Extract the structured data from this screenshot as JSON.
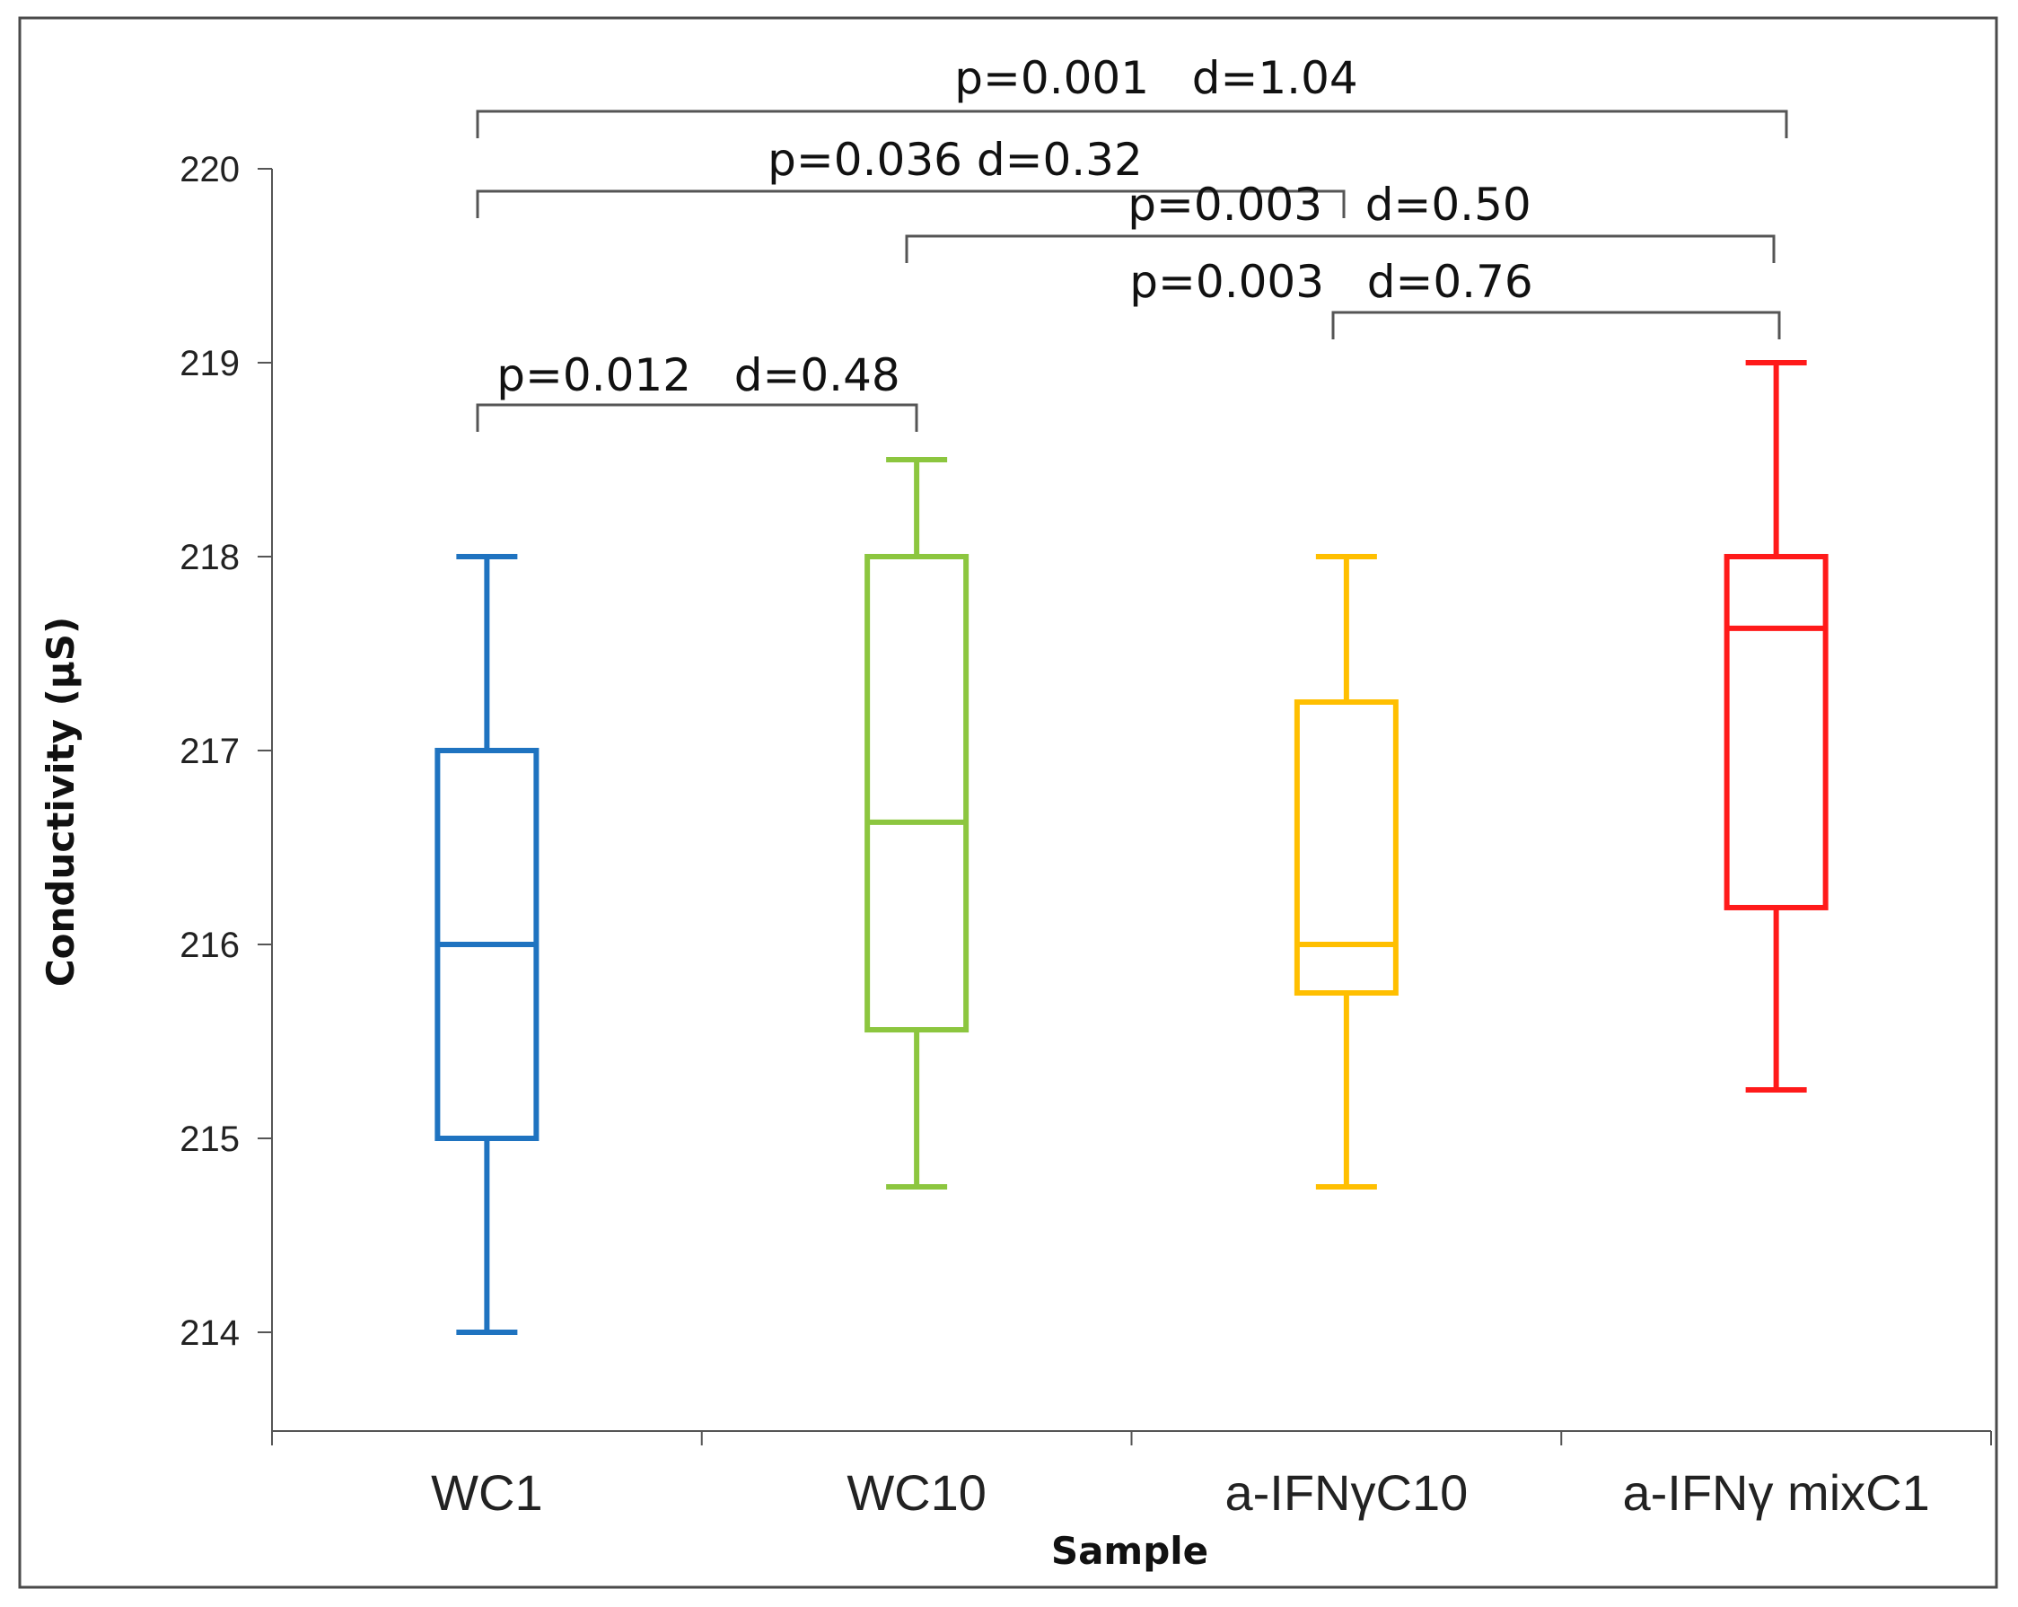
{
  "chart_data": {
    "type": "box",
    "title": "",
    "xlabel": "Sample",
    "ylabel": "Conductivity  (µS)",
    "ylim": [
      213.5,
      220.2
    ],
    "yticks": [
      214,
      215,
      216,
      217,
      218,
      219,
      220
    ],
    "categories": [
      "WC1",
      "WC10",
      "a-IFNγC10",
      "a-IFNγ mixC1"
    ],
    "colors": [
      "#1f73c0",
      "#8cc63f",
      "#ffbf00",
      "#ff1a1a"
    ],
    "series": [
      {
        "name": "WC1",
        "min": 214.0,
        "q1": 215.0,
        "median": 216.0,
        "q3": 217.0,
        "max": 218.0
      },
      {
        "name": "WC10",
        "min": 214.75,
        "q1": 215.56,
        "median": 216.63,
        "q3": 218.0,
        "max": 218.5
      },
      {
        "name": "a-IFNγC10",
        "min": 214.75,
        "q1": 215.75,
        "median": 216.0,
        "q3": 217.25,
        "max": 218.0
      },
      {
        "name": "a-IFNγ mixC1",
        "min": 215.25,
        "q1": 216.19,
        "median": 217.63,
        "q3": 218.0,
        "max": 219.0
      }
    ],
    "annotations": [
      {
        "from": 0,
        "to": 3,
        "label": "p=0.001   d=1.04"
      },
      {
        "from": 0,
        "to": 2,
        "label": "p=0.036 d=0.32"
      },
      {
        "from": 1,
        "to": 3,
        "label": "p=0.003   d=0.50"
      },
      {
        "from": 2,
        "to": 3,
        "label": "p=0.003   d=0.76"
      },
      {
        "from": 0,
        "to": 1,
        "label": "p=0.012   d=0.48"
      }
    ]
  }
}
